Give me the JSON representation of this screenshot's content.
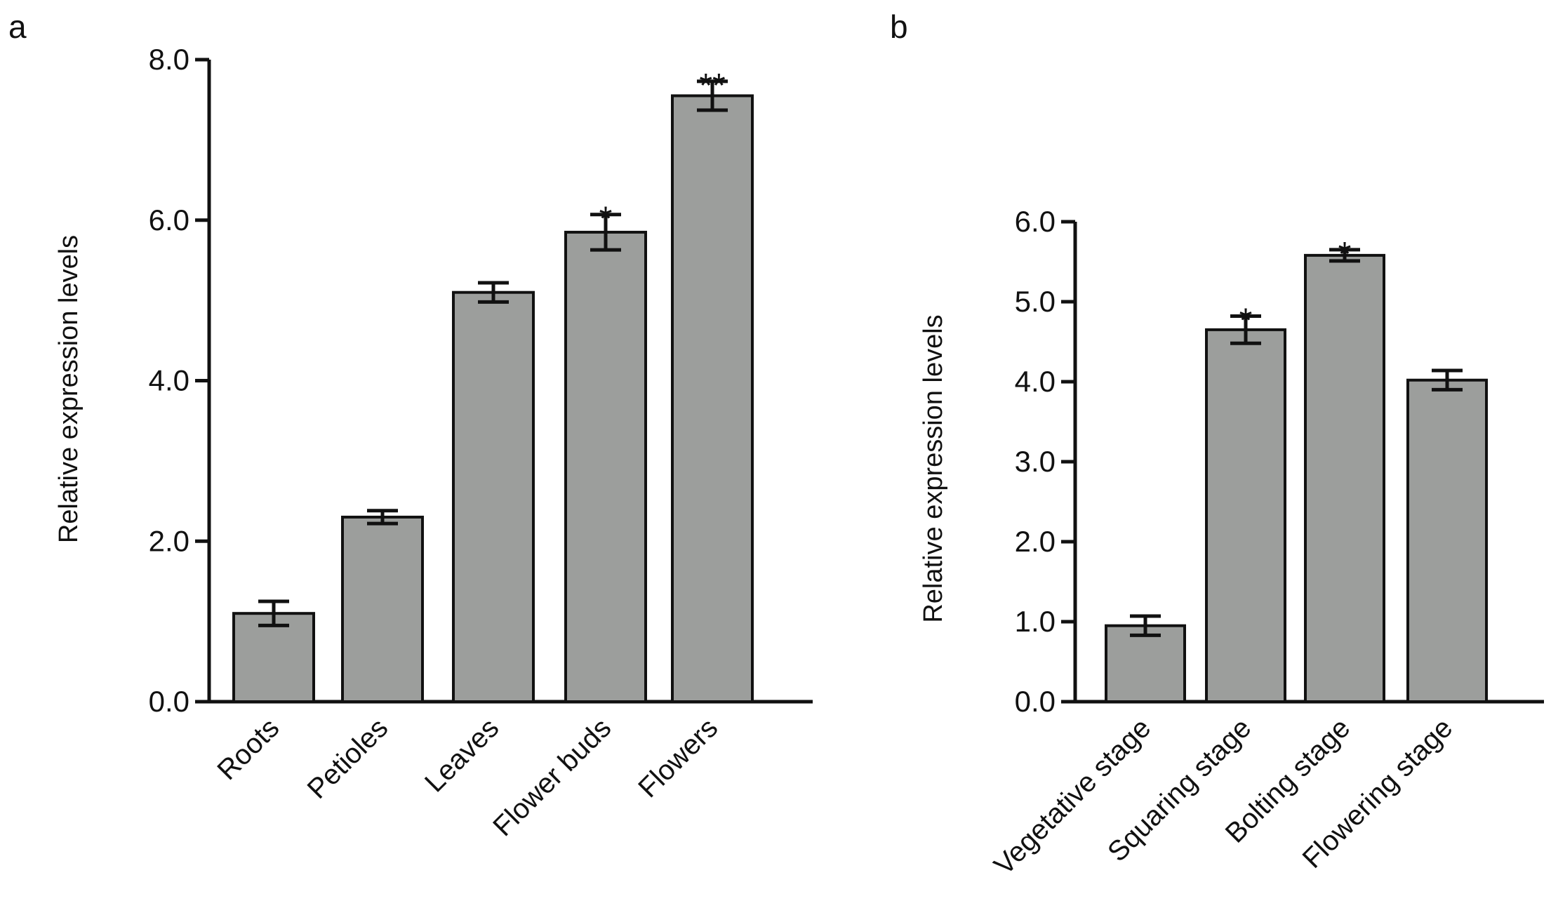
{
  "chart_data": [
    {
      "panel": "a",
      "type": "bar",
      "title": "",
      "xlabel": "",
      "ylabel": "Relative expression levels",
      "ylim": [
        0,
        8
      ],
      "yticks": [
        0,
        2,
        4,
        6,
        8
      ],
      "ytick_labels": [
        "0.0",
        "2.0",
        "4.0",
        "6.0",
        "8.0"
      ],
      "categories": [
        "Roots",
        "Petioles",
        "Leaves",
        "Flower buds",
        "Flowers"
      ],
      "values": [
        1.1,
        2.3,
        5.1,
        5.85,
        7.55
      ],
      "errors": [
        0.15,
        0.08,
        0.12,
        0.22,
        0.18
      ],
      "significance": [
        "",
        "",
        "",
        "*",
        "**"
      ],
      "bar_color": "#9c9e9c",
      "grid": false,
      "legend": "none"
    },
    {
      "panel": "b",
      "type": "bar",
      "title": "",
      "xlabel": "",
      "ylabel": "Relative expression levels",
      "ylim": [
        0,
        6
      ],
      "yticks": [
        0,
        1,
        2,
        3,
        4,
        5,
        6
      ],
      "ytick_labels": [
        "0.0",
        "1.0",
        "2.0",
        "3.0",
        "4.0",
        "5.0",
        "6.0"
      ],
      "categories": [
        "Vegetative stage",
        "Squaring stage",
        "Bolting stage",
        "Flowering stage"
      ],
      "values": [
        0.95,
        4.65,
        5.58,
        4.02
      ],
      "errors": [
        0.12,
        0.17,
        0.07,
        0.12
      ],
      "significance": [
        "",
        "*",
        "*",
        ""
      ],
      "bar_color": "#9c9e9c",
      "grid": false,
      "legend": "none"
    }
  ]
}
